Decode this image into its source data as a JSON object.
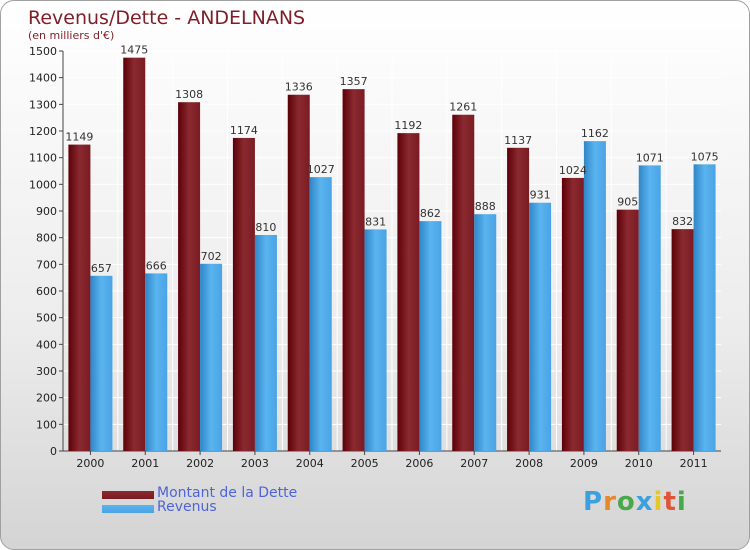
{
  "header": {
    "title": "Revenus/Dette - ANDELNANS",
    "subtitle": "(en milliers d'€)"
  },
  "chart_data": {
    "type": "bar",
    "categories": [
      "2000",
      "2001",
      "2002",
      "2003",
      "2004",
      "2005",
      "2006",
      "2007",
      "2008",
      "2009",
      "2010",
      "2011"
    ],
    "series": [
      {
        "name": "Montant de la Dette",
        "values": [
          1149,
          1475,
          1308,
          1174,
          1336,
          1357,
          1192,
          1261,
          1137,
          1024,
          905,
          832
        ],
        "color": "#7a1a22"
      },
      {
        "name": "Revenus",
        "values": [
          657,
          666,
          702,
          810,
          1027,
          831,
          862,
          888,
          931,
          1162,
          1071,
          1075
        ],
        "color": "#4aa3e6"
      }
    ],
    "title": "Revenus/Dette - ANDELNANS",
    "ylabel": "(en milliers d'€)",
    "ylim": [
      0,
      1500
    ],
    "yticks": [
      0,
      100,
      200,
      300,
      400,
      500,
      600,
      700,
      800,
      900,
      1000,
      1100,
      1200,
      1300,
      1400,
      1500
    ],
    "grid": true,
    "legend": "bottom-left"
  },
  "legend": {
    "items": [
      {
        "label": "Montant de la Dette",
        "color": "#7a1a22"
      },
      {
        "label": "Revenus",
        "color": "#4aa3e6"
      }
    ]
  },
  "logo": {
    "letters": [
      "P",
      "r",
      "o",
      "x",
      "i",
      "t",
      "i"
    ],
    "colors": [
      "#3aa0e0",
      "#e48a2a",
      "#4aa84a",
      "#3aa0e0",
      "#e4c82a",
      "#e0553a",
      "#4aa84a"
    ]
  }
}
